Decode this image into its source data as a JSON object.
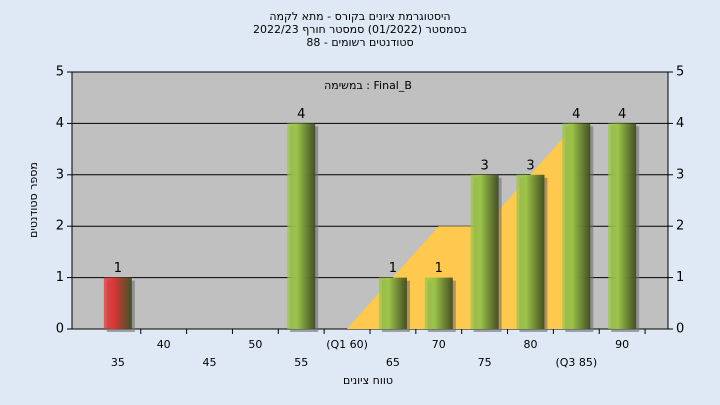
{
  "chart_data": {
    "type": "bar",
    "title": [
      "היסטוגרמת ציונים בקורס - מתא לקמה",
      "בסמסטר  (01/2022)  סמסטר חורף 2022/23",
      "סטודנטים רשומים - 88"
    ],
    "annotation": "במשימה : Final_B",
    "x_label": "טווח ציונים",
    "y_label": "מספר סטודנטים",
    "categories": [
      "35",
      "40",
      "45",
      "50",
      "55",
      "(Q1 60)",
      "65",
      "70",
      "75",
      "80",
      "(Q3 85)",
      "90"
    ],
    "values": [
      1,
      0,
      0,
      0,
      4,
      0,
      1,
      1,
      3,
      3,
      4,
      4
    ],
    "colors": [
      "#e03535",
      "#9cc448",
      "#9cc448",
      "#9cc448",
      "#9cc448",
      "#9cc448",
      "#9cc448",
      "#9cc448",
      "#9cc448",
      "#9cc448",
      "#9cc448",
      "#9cc448"
    ],
    "area": {
      "color": "#ffc94f",
      "values": [
        null,
        null,
        null,
        null,
        null,
        0,
        1,
        2,
        2,
        3,
        4,
        null
      ]
    },
    "ylim": [
      0,
      5
    ],
    "yticks": [
      0,
      1,
      2,
      3,
      4,
      5
    ],
    "grid": true
  }
}
